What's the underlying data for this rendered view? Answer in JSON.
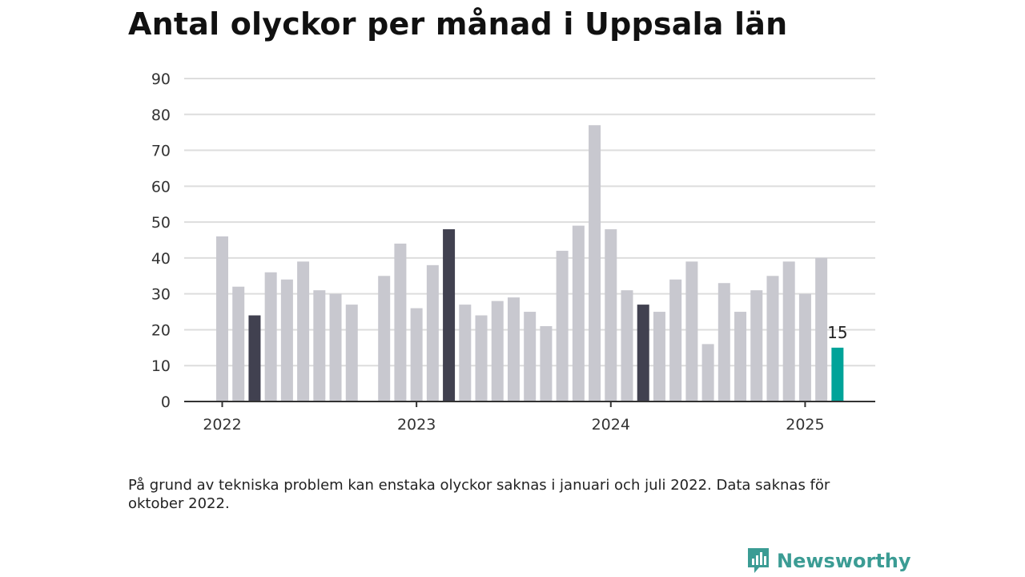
{
  "title": "Antal olyckor per månad i Uppsala län",
  "footnote": "På grund av tekniska problem kan enstaka olyckor saknas i januari och juli 2022. Data saknas för oktober 2022.",
  "brand": {
    "name": "Newsworthy",
    "icon": "newsworthy-logo-icon",
    "color": "#3b9c94"
  },
  "colors": {
    "default": "#c8c8cf",
    "highlight": "#414150",
    "current": "#00a399",
    "grid": "#dddddd",
    "axis": "#333333"
  },
  "chart_data": {
    "type": "bar",
    "title": "Antal olyckor per månad i Uppsala län",
    "xlabel": "",
    "ylabel": "",
    "ylim": [
      0,
      90
    ],
    "yticks": [
      0,
      10,
      20,
      30,
      40,
      50,
      60,
      70,
      80,
      90
    ],
    "grid": true,
    "x_tick_labels": [
      {
        "label": "2022",
        "month": "2022-01"
      },
      {
        "label": "2023",
        "month": "2023-01"
      },
      {
        "label": "2024",
        "month": "2024-01"
      },
      {
        "label": "2025",
        "month": "2025-01"
      }
    ],
    "months": [
      "2022-01",
      "2022-02",
      "2022-03",
      "2022-04",
      "2022-05",
      "2022-06",
      "2022-07",
      "2022-08",
      "2022-09",
      "2022-10",
      "2022-11",
      "2022-12",
      "2023-01",
      "2023-02",
      "2023-03",
      "2023-04",
      "2023-05",
      "2023-06",
      "2023-07",
      "2023-08",
      "2023-09",
      "2023-10",
      "2023-11",
      "2023-12",
      "2024-01",
      "2024-02",
      "2024-03",
      "2024-04",
      "2024-05",
      "2024-06",
      "2024-07",
      "2024-08",
      "2024-09",
      "2024-10",
      "2024-11",
      "2024-12",
      "2025-01",
      "2025-02",
      "2025-03"
    ],
    "values": [
      46,
      32,
      24,
      36,
      34,
      39,
      31,
      30,
      27,
      null,
      35,
      44,
      26,
      38,
      48,
      27,
      24,
      28,
      29,
      25,
      21,
      42,
      49,
      77,
      48,
      31,
      27,
      25,
      34,
      39,
      16,
      33,
      25,
      31,
      35,
      39,
      30,
      40,
      15
    ],
    "highlight_months": [
      "2022-03",
      "2023-03",
      "2024-03"
    ],
    "current_month": "2025-03",
    "data_labels": [
      {
        "month": "2025-03",
        "text": "15"
      }
    ]
  }
}
